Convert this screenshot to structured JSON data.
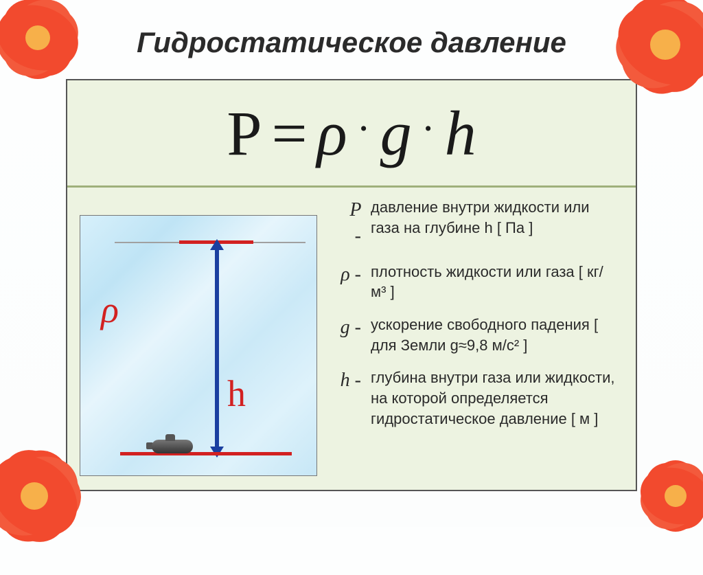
{
  "title": "Гидростатическое давление",
  "formula": {
    "P": "P",
    "eq": "=",
    "rho": "ρ",
    "dot": "·",
    "g": "g",
    "h": "h"
  },
  "diagram": {
    "rho_label": "ρ",
    "h_label": "h",
    "colors": {
      "water_bg": "#d7f0fb",
      "marker": "#d22121",
      "arrow": "#1a3fa0"
    }
  },
  "definitions": [
    {
      "symbol": "P",
      "text": "давление внутри жидкости или газа на глубине h [ Па ]"
    },
    {
      "symbol": "ρ",
      "text": "плотность жидкости или газа [ кг/м³ ]"
    },
    {
      "symbol": "g",
      "text": "ускорение свободного падения [ для Земли g≈9,8 м/с² ]"
    },
    {
      "symbol": "h",
      "text": "глубина внутри газа или жидкости, на которой определяется гидростатическое давление [ м ]"
    }
  ],
  "flowers": {
    "petal_color": "#f24a2e",
    "center_color": "#f7b04a"
  }
}
